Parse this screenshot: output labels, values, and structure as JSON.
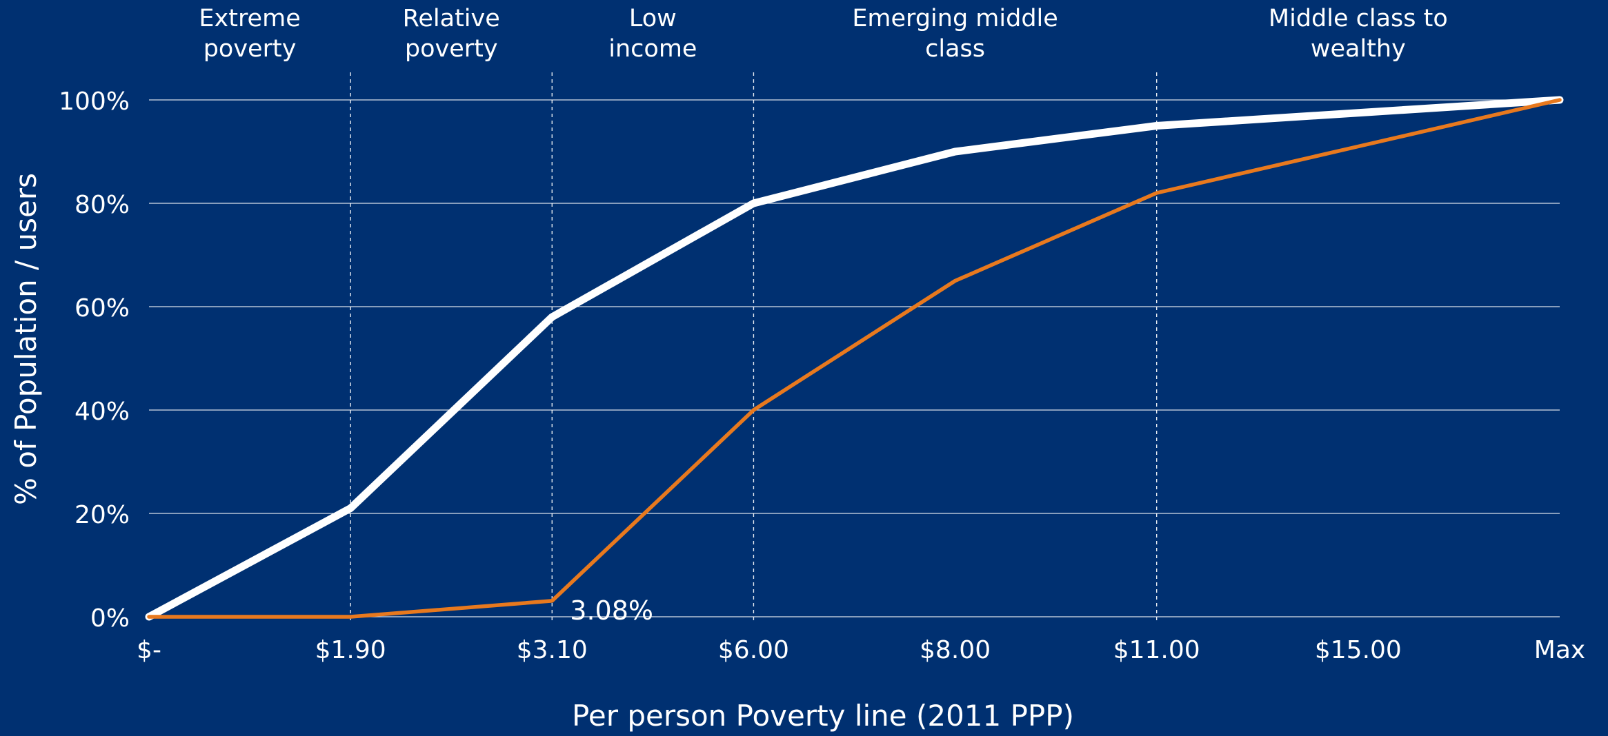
{
  "chart_data": {
    "type": "line",
    "title": "",
    "xlabel": "Per person Poverty line (2011 PPP)",
    "ylabel": "% of Population / users",
    "categories": [
      "$-",
      "$1.90",
      "$3.10",
      "$6.00",
      "$8.00",
      "$11.00",
      "$15.00",
      "Max"
    ],
    "yticks": [
      "0%",
      "20%",
      "40%",
      "60%",
      "80%",
      "100%"
    ],
    "ylim": [
      0,
      100
    ],
    "grid": "horizontal",
    "series": [
      {
        "color": "#ffffff",
        "values": [
          0,
          21,
          58,
          80,
          90,
          95,
          97.5,
          100
        ]
      },
      {
        "color": "#e8791e",
        "values": [
          0,
          0,
          3.08,
          40,
          65,
          82,
          91,
          100
        ]
      }
    ],
    "bands": [
      {
        "label_line1": "Extreme",
        "label_line2": "poverty",
        "from": 0,
        "to": 1
      },
      {
        "label_line1": "Relative",
        "label_line2": "poverty",
        "from": 1,
        "to": 2
      },
      {
        "label_line1": "Low",
        "label_line2": "income",
        "from": 2,
        "to": 3
      },
      {
        "label_line1": "Emerging middle",
        "label_line2": "class",
        "from": 3,
        "to": 5
      },
      {
        "label_line1": "Middle class to",
        "label_line2": "wealthy",
        "from": 5,
        "to": 7
      }
    ],
    "band_dividers": [
      1,
      2,
      3,
      5
    ],
    "annotation": {
      "text": "3.08%",
      "x_index": 2,
      "value": 3.08
    }
  }
}
